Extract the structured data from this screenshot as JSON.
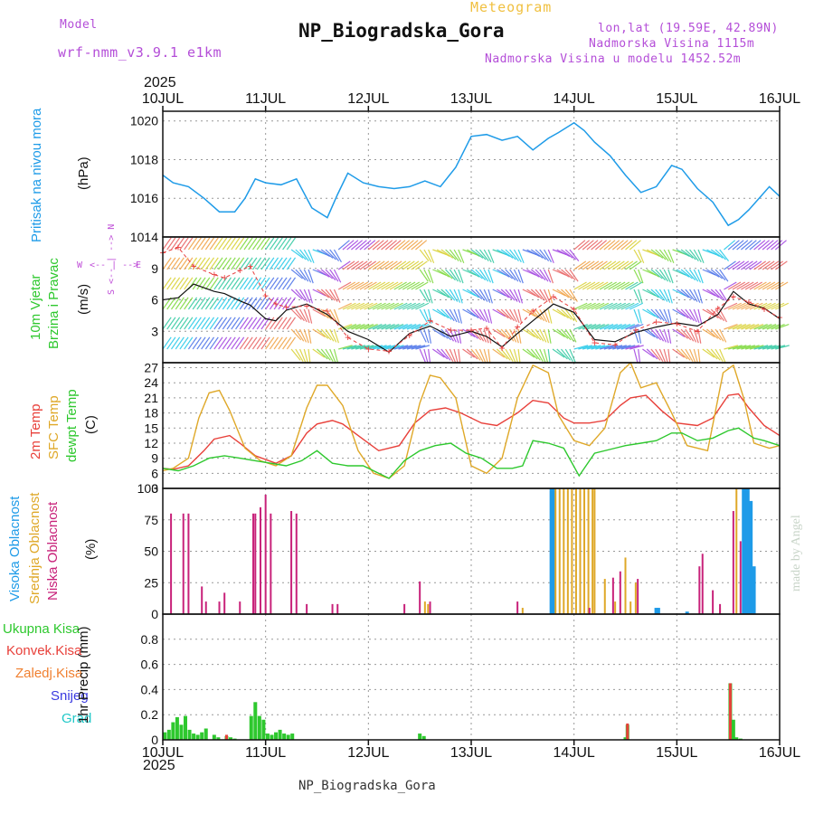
{
  "header": {
    "model_label": "Model",
    "model_name": "wrf-nmm_v3.9.1 e1km",
    "subtitle": "Meteogram",
    "station": "NP_Biogradska_Gora",
    "lonlat": "lon,lat (19.59E, 42.89N)",
    "elevation": "Nadmorska Visina 1115m",
    "model_elevation": "Nadmorska Visina u modelu 1452.52m",
    "year_top": "2025",
    "year_bottom": "2025",
    "footer_station": "NP_Biogradska_Gora",
    "credit": "made by Angel"
  },
  "x_axis": {
    "ticks": [
      "10JUL",
      "11JUL",
      "12JUL",
      "13JUL",
      "14JUL",
      "15JUL",
      "16JUL"
    ],
    "range_days": [
      0,
      6
    ]
  },
  "colors": {
    "pressure": "#1e9be8",
    "t2m": "#e8403a",
    "sfc": "#dfa828",
    "dewpt": "#2ec82e",
    "cloud_high": "#1e9be8",
    "cloud_mid": "#dfa828",
    "cloud_low": "#c8227a",
    "precip_total": "#2ec82e",
    "precip_conv": "#e8403a",
    "wind_dir": "#c050d8"
  },
  "panel_labels": {
    "pressure": [
      "Pritisak na nivou mora",
      "(hPa)"
    ],
    "wind": [
      "10m Vjetar",
      "Brzina i Pravac",
      "(m/s)"
    ],
    "wind_dir": [
      "W",
      "<-- | -->",
      "E",
      "S <-- | --> N"
    ],
    "temp": [
      "2m Temp",
      "SFC Temp",
      "dewpt Temp",
      "(C)"
    ],
    "cloud": [
      "Visoka Oblacnost",
      "Srednja Oblacnost",
      "Niska Oblacnost",
      "(%)"
    ],
    "precip": [
      "Ukupna Kisa",
      "Konvek.Kisa",
      "Zaledj.Kisa",
      "Snijeg",
      "Grad",
      "1hr Precip (mm)"
    ]
  },
  "chart_data": [
    {
      "type": "line",
      "title": "",
      "ylabel": "Pritisak na nivou mora (hPa)",
      "ylim": [
        1014,
        1020.5
      ],
      "yticks": [
        1014,
        1016,
        1018,
        1020
      ],
      "series": [
        {
          "name": "",
          "x": [
            0,
            0.1,
            0.25,
            0.4,
            0.55,
            0.7,
            0.8,
            0.9,
            1.0,
            1.15,
            1.3,
            1.45,
            1.6,
            1.7,
            1.8,
            1.95,
            2.1,
            2.25,
            2.4,
            2.55,
            2.7,
            2.85,
            3.0,
            3.15,
            3.3,
            3.45,
            3.6,
            3.75,
            3.85,
            4.0,
            4.1,
            4.2,
            4.35,
            4.5,
            4.65,
            4.8,
            4.95,
            5.05,
            5.2,
            5.35,
            5.5,
            5.6,
            5.7,
            5.8,
            5.9,
            6.0
          ],
          "y": [
            1017.2,
            1016.8,
            1016.6,
            1016.0,
            1015.3,
            1015.3,
            1016.0,
            1017.0,
            1016.8,
            1016.7,
            1017.0,
            1015.5,
            1015.0,
            1016.2,
            1017.3,
            1016.8,
            1016.6,
            1016.5,
            1016.6,
            1016.9,
            1016.6,
            1017.6,
            1019.2,
            1019.3,
            1019.0,
            1019.2,
            1018.5,
            1019.1,
            1019.4,
            1019.9,
            1019.5,
            1018.9,
            1018.2,
            1017.2,
            1016.3,
            1016.6,
            1017.7,
            1017.5,
            1016.5,
            1015.8,
            1014.6,
            1014.9,
            1015.4,
            1016.0,
            1016.6,
            1016.1
          ]
        }
      ]
    },
    {
      "type": "line",
      "title": "",
      "ylabel": "10m Vjetar Brzina i Pravac (m/s)",
      "ylim": [
        0,
        12
      ],
      "yticks": [
        3,
        6,
        9
      ],
      "series": [
        {
          "name": "",
          "x": [
            0,
            0.15,
            0.3,
            0.5,
            0.6,
            0.75,
            0.85,
            1.0,
            1.1,
            1.2,
            1.4,
            1.6,
            1.8,
            2.0,
            2.2,
            2.4,
            2.6,
            2.8,
            3.0,
            3.15,
            3.3,
            3.45,
            3.6,
            3.8,
            4.0,
            4.2,
            4.4,
            4.6,
            4.8,
            5.0,
            5.2,
            5.4,
            5.55,
            5.7,
            5.85,
            6.0
          ],
          "y": [
            6.0,
            6.2,
            7.5,
            6.8,
            6.6,
            5.9,
            5.5,
            4.2,
            4.0,
            5.0,
            5.6,
            4.6,
            3.0,
            2.2,
            1.0,
            2.8,
            3.5,
            2.5,
            3.0,
            2.5,
            1.5,
            2.8,
            4.0,
            5.6,
            4.8,
            2.2,
            2.0,
            2.9,
            3.4,
            3.8,
            3.5,
            4.6,
            6.8,
            5.6,
            5.2,
            4.2
          ]
        },
        {
          "name": "",
          "x": [
            0,
            0.15,
            0.3,
            0.5,
            0.6,
            0.75,
            0.85,
            1.0,
            1.1,
            1.2,
            1.4,
            1.6,
            1.8,
            2.0,
            2.2,
            2.4,
            2.6,
            2.8,
            3.0,
            3.15,
            3.3,
            3.45,
            3.6,
            3.8,
            4.0,
            4.2,
            4.4,
            4.6,
            4.8,
            5.0,
            5.2,
            5.4,
            5.55,
            5.7,
            5.85,
            6.0
          ],
          "y": [
            10.5,
            11.0,
            9.2,
            8.4,
            8.1,
            8.8,
            9.2,
            6.4,
            5.6,
            5.3,
            5.4,
            4.9,
            2.4,
            1.3,
            1.1,
            2.6,
            4.0,
            3.1,
            3.1,
            3.3,
            1.4,
            3.4,
            4.9,
            6.3,
            5.1,
            1.9,
            1.7,
            3.1,
            3.9,
            3.7,
            3.0,
            5.2,
            6.3,
            5.8,
            5.1,
            4.3
          ]
        }
      ]
    },
    {
      "type": "line",
      "title": "",
      "ylabel": "Temp (C)",
      "ylim": [
        3,
        28
      ],
      "yticks": [
        3,
        6,
        9,
        12,
        15,
        18,
        21,
        24,
        27
      ],
      "series": [
        {
          "name": "2m Temp",
          "x": [
            0,
            0.1,
            0.25,
            0.4,
            0.5,
            0.65,
            0.75,
            0.9,
            1.1,
            1.25,
            1.4,
            1.5,
            1.65,
            1.75,
            1.9,
            2.1,
            2.3,
            2.45,
            2.6,
            2.75,
            2.9,
            3.1,
            3.25,
            3.45,
            3.6,
            3.75,
            3.9,
            4.0,
            4.15,
            4.3,
            4.45,
            4.55,
            4.7,
            4.85,
            5.0,
            5.2,
            5.35,
            5.5,
            5.6,
            5.7,
            5.85,
            6.0
          ],
          "y": [
            7.0,
            6.8,
            7.5,
            10.5,
            12.8,
            13.5,
            12.0,
            9.5,
            8.0,
            9.5,
            14.0,
            15.8,
            16.5,
            15.8,
            13.5,
            10.5,
            11.5,
            16.0,
            18.5,
            19.0,
            18.0,
            16.0,
            15.5,
            18.0,
            20.5,
            20.0,
            17.0,
            16.0,
            16.0,
            16.5,
            19.5,
            21.0,
            21.5,
            18.5,
            16.0,
            15.5,
            17.0,
            21.5,
            21.8,
            19.0,
            15.5,
            13.5
          ]
        },
        {
          "name": "SFC Temp",
          "x": [
            0,
            0.1,
            0.25,
            0.35,
            0.45,
            0.55,
            0.65,
            0.8,
            0.95,
            1.1,
            1.25,
            1.4,
            1.5,
            1.6,
            1.75,
            1.9,
            2.05,
            2.2,
            2.35,
            2.5,
            2.6,
            2.7,
            2.85,
            3.0,
            3.15,
            3.3,
            3.45,
            3.6,
            3.75,
            3.85,
            4.0,
            4.15,
            4.3,
            4.45,
            4.55,
            4.65,
            4.8,
            4.95,
            5.1,
            5.3,
            5.45,
            5.55,
            5.65,
            5.75,
            5.9,
            6.0
          ],
          "y": [
            6.5,
            7.0,
            9.0,
            17.0,
            22.0,
            22.5,
            18.5,
            11.0,
            8.5,
            7.5,
            9.5,
            19.0,
            23.5,
            23.5,
            19.5,
            10.5,
            6.0,
            5.0,
            7.5,
            20.0,
            25.5,
            25.0,
            21.0,
            7.5,
            6.0,
            9.0,
            21.0,
            27.5,
            26.0,
            17.5,
            12.5,
            11.5,
            15.0,
            26.0,
            28.0,
            23.0,
            24.0,
            18.0,
            11.5,
            10.5,
            26.0,
            27.5,
            21.0,
            12.0,
            11.0,
            11.5
          ]
        },
        {
          "name": "dewpt Temp",
          "x": [
            0,
            0.15,
            0.3,
            0.45,
            0.6,
            0.75,
            0.9,
            1.05,
            1.2,
            1.35,
            1.5,
            1.65,
            1.8,
            1.95,
            2.05,
            2.2,
            2.35,
            2.5,
            2.65,
            2.8,
            2.95,
            3.1,
            3.25,
            3.4,
            3.5,
            3.6,
            3.75,
            3.9,
            4.05,
            4.2,
            4.4,
            4.5,
            4.65,
            4.8,
            4.95,
            5.05,
            5.2,
            5.35,
            5.5,
            5.6,
            5.75,
            5.85,
            6.0
          ],
          "y": [
            7.0,
            6.5,
            7.5,
            9.0,
            9.5,
            9.0,
            8.5,
            8.0,
            7.5,
            8.5,
            10.5,
            8.0,
            7.5,
            7.5,
            6.5,
            5.0,
            8.5,
            10.5,
            11.5,
            12.0,
            10.0,
            9.0,
            7.0,
            7.0,
            7.5,
            12.5,
            12.0,
            11.0,
            5.5,
            10.0,
            11.0,
            11.5,
            12.0,
            12.5,
            14.0,
            14.0,
            12.5,
            13.0,
            14.5,
            15.0,
            13.0,
            12.5,
            11.5
          ]
        }
      ]
    },
    {
      "type": "bar",
      "title": "",
      "ylabel": "Oblacnost (%)",
      "ylim": [
        0,
        100
      ],
      "yticks": [
        0,
        25,
        50,
        75,
        100
      ],
      "series": [
        {
          "name": "Visoka Oblacnost",
          "x": [
            3.78,
            3.8,
            4.8,
            4.82,
            5.1,
            5.65,
            5.67,
            5.69,
            5.72,
            5.75
          ],
          "values": [
            100,
            100,
            5,
            5,
            2,
            100,
            100,
            100,
            90,
            38
          ]
        },
        {
          "name": "Srednja Oblacnost",
          "x": [
            2.55,
            2.58,
            3.5,
            3.82,
            3.86,
            3.9,
            3.94,
            3.98,
            4.02,
            4.06,
            4.1,
            4.14,
            4.18,
            4.2,
            4.3,
            4.4,
            4.5,
            4.55,
            4.6,
            5.42,
            5.58
          ],
          "values": [
            10,
            8,
            5,
            100,
            100,
            100,
            100,
            100,
            100,
            100,
            100,
            100,
            100,
            100,
            28,
            10,
            45,
            10,
            25,
            5,
            100
          ]
        },
        {
          "name": "Niska Oblacnost",
          "x": [
            0.08,
            0.2,
            0.25,
            0.38,
            0.42,
            0.55,
            0.6,
            0.75,
            0.88,
            0.9,
            0.95,
            1.0,
            1.05,
            1.25,
            1.3,
            1.4,
            1.65,
            1.7,
            2.35,
            2.5,
            2.6,
            3.45,
            4.15,
            4.38,
            4.45,
            4.62,
            5.22,
            5.25,
            5.35,
            5.42,
            5.55,
            5.62
          ],
          "values": [
            80,
            80,
            80,
            22,
            10,
            10,
            17,
            10,
            80,
            80,
            85,
            95,
            80,
            82,
            80,
            8,
            8,
            8,
            8,
            26,
            10,
            10,
            5,
            29,
            34,
            28,
            38,
            48,
            19,
            8,
            82,
            58
          ]
        }
      ]
    },
    {
      "type": "bar",
      "title": "",
      "ylabel": "1hr Precip (mm)",
      "ylim": [
        0,
        1.0
      ],
      "yticks": [
        0,
        0.2,
        0.4,
        0.6,
        0.8
      ],
      "series": [
        {
          "name": "Ukupna Kisa",
          "x": [
            0.02,
            0.06,
            0.1,
            0.14,
            0.18,
            0.22,
            0.26,
            0.3,
            0.34,
            0.38,
            0.42,
            0.5,
            0.54,
            0.62,
            0.66,
            0.7,
            0.86,
            0.9,
            0.94,
            0.98,
            1.02,
            1.06,
            1.1,
            1.14,
            1.18,
            1.22,
            1.26,
            2.5,
            2.54,
            4.5,
            4.52,
            5.52,
            5.55,
            5.58,
            5.62
          ],
          "values": [
            0.06,
            0.08,
            0.14,
            0.18,
            0.12,
            0.19,
            0.08,
            0.05,
            0.04,
            0.06,
            0.09,
            0.04,
            0.02,
            0.03,
            0.02,
            0.01,
            0.19,
            0.3,
            0.19,
            0.16,
            0.05,
            0.04,
            0.06,
            0.08,
            0.05,
            0.04,
            0.05,
            0.05,
            0.03,
            0.02,
            0.12,
            0.45,
            0.16,
            0.02,
            0.01
          ]
        },
        {
          "name": "Konvek.Kisa",
          "x": [
            0.62,
            4.52,
            5.52
          ],
          "values": [
            0.04,
            0.13,
            0.45
          ]
        }
      ]
    }
  ]
}
